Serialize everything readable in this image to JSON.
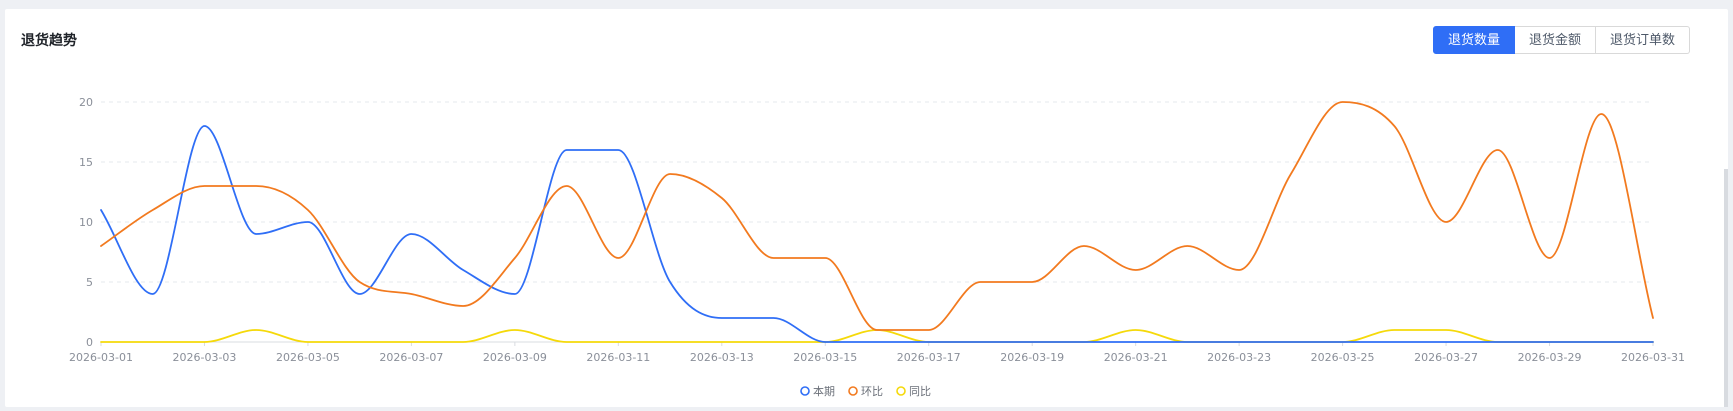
{
  "card": {
    "title": "退货趋势",
    "tabs": [
      {
        "label": "退货数量",
        "active": true
      },
      {
        "label": "退货金额",
        "active": false
      },
      {
        "label": "退货订单数",
        "active": false
      }
    ]
  },
  "chart_data": {
    "type": "line",
    "title": "",
    "xlabel": "",
    "ylabel": "",
    "ylim": [
      0,
      20
    ],
    "y_ticks": [
      0,
      5,
      10,
      15,
      20
    ],
    "grid": true,
    "legend_position": "bottom",
    "smooth": true,
    "x": [
      "2026-03-01",
      "2026-03-02",
      "2026-03-03",
      "2026-03-04",
      "2026-03-05",
      "2026-03-06",
      "2026-03-07",
      "2026-03-08",
      "2026-03-09",
      "2026-03-10",
      "2026-03-11",
      "2026-03-12",
      "2026-03-13",
      "2026-03-14",
      "2026-03-15",
      "2026-03-16",
      "2026-03-17",
      "2026-03-18",
      "2026-03-19",
      "2026-03-20",
      "2026-03-21",
      "2026-03-22",
      "2026-03-23",
      "2026-03-24",
      "2026-03-25",
      "2026-03-26",
      "2026-03-27",
      "2026-03-28",
      "2026-03-29",
      "2026-03-30",
      "2026-03-31"
    ],
    "x_tick_labels": [
      "2026-03-01",
      "2026-03-03",
      "2026-03-05",
      "2026-03-07",
      "2026-03-09",
      "2026-03-11",
      "2026-03-13",
      "2026-03-15",
      "2026-03-17",
      "2026-03-19",
      "2026-03-21",
      "2026-03-23",
      "2026-03-25",
      "2026-03-27",
      "2026-03-29",
      "2026-03-31"
    ],
    "series": [
      {
        "name": "本期",
        "color": "#2f6ef6",
        "values": [
          11,
          4,
          18,
          9,
          10,
          4,
          9,
          6,
          4,
          16,
          16,
          5,
          2,
          2,
          0,
          0,
          0,
          0,
          0,
          0,
          0,
          0,
          0,
          0,
          0,
          0,
          0,
          0,
          0,
          0,
          0
        ]
      },
      {
        "name": "环比",
        "color": "#f27a1f",
        "values": [
          8,
          11,
          13,
          13,
          11,
          5,
          4,
          3,
          7,
          13,
          7,
          14,
          12,
          7,
          7,
          1,
          1,
          5,
          5,
          8,
          6,
          8,
          6,
          14,
          20,
          18,
          10,
          16,
          7,
          19,
          2
        ]
      },
      {
        "name": "同比",
        "color": "#f5d90a",
        "values": [
          0,
          0,
          0,
          1,
          0,
          0,
          0,
          0,
          1,
          0,
          0,
          0,
          0,
          0,
          0,
          1,
          0,
          0,
          0,
          0,
          1,
          0,
          0,
          0,
          0,
          1,
          1,
          0,
          0,
          0,
          0
        ]
      }
    ]
  }
}
